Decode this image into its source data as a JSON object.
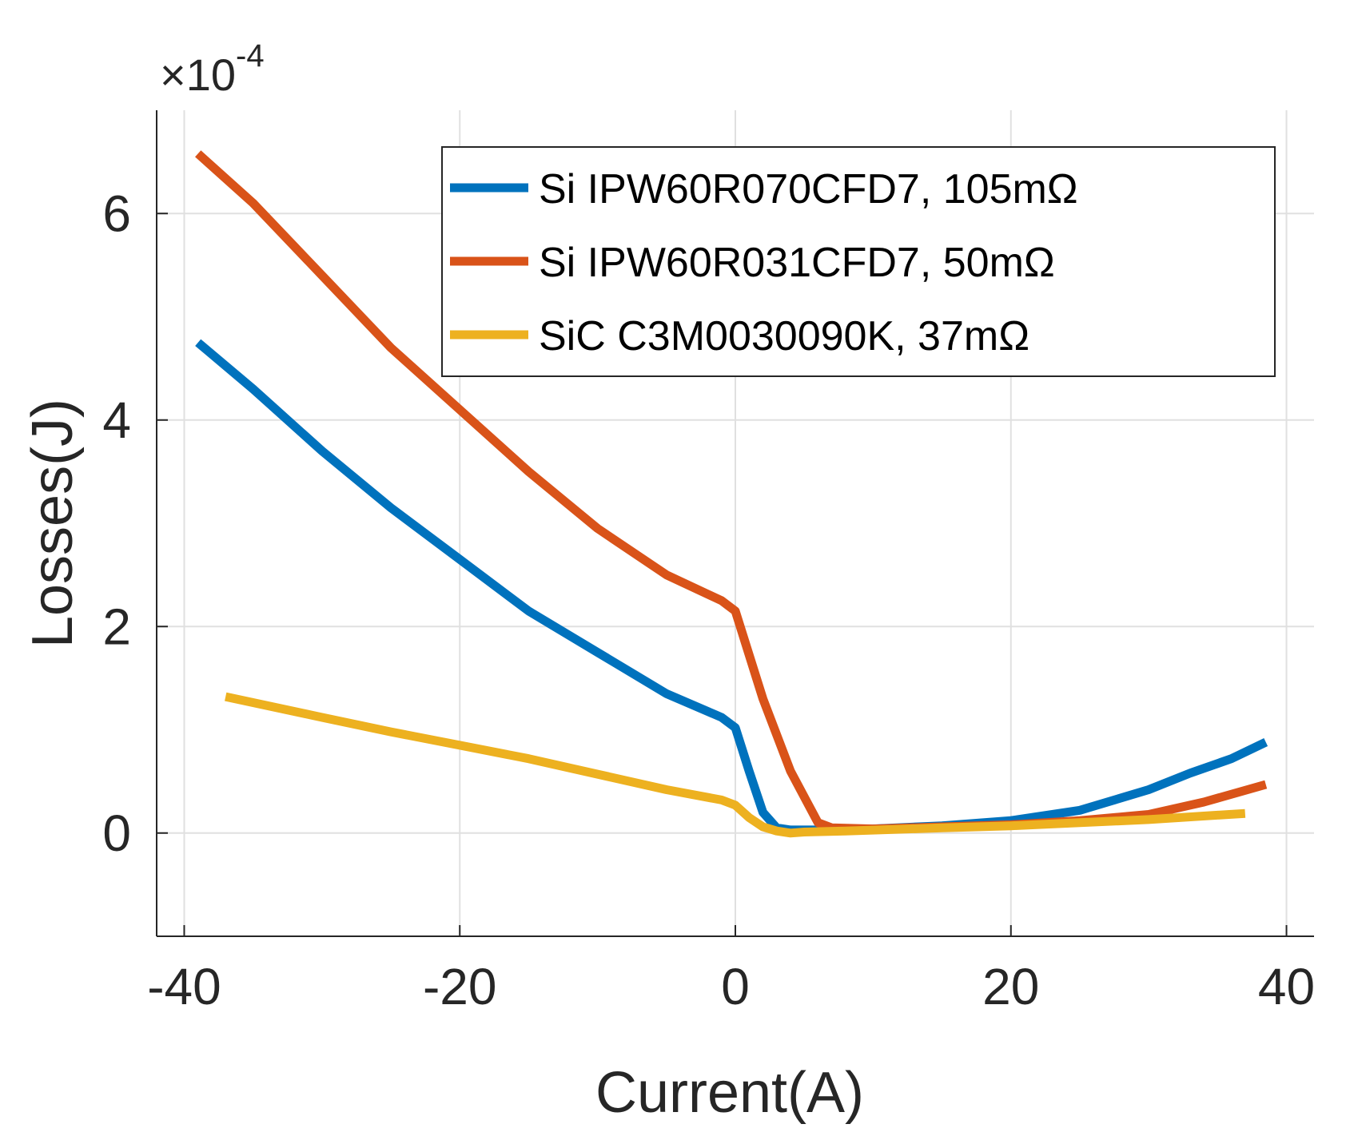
{
  "chart_data": {
    "type": "line",
    "title": "",
    "xlabel": "Current(A)",
    "ylabel": "Losses(J)",
    "xlim": [
      -42,
      42
    ],
    "ylim": [
      -1,
      7
    ],
    "xticks": [
      -40,
      -20,
      0,
      20,
      40
    ],
    "xtick_labels": [
      "-40",
      "-20",
      "0",
      "20",
      "40"
    ],
    "yticks": [
      0,
      2,
      4,
      6
    ],
    "ytick_labels": [
      "0",
      "2",
      "4",
      "6"
    ],
    "y_exponent_prefix": "×10",
    "y_exponent": "-4",
    "grid": true,
    "legend_position": "top-right",
    "series": [
      {
        "name": "Si IPW60R070CFD7, 105mΩ",
        "color": "#0072BD",
        "x": [
          -39,
          -35,
          -30,
          -25,
          -20,
          -15,
          -10,
          -5,
          -1,
          0,
          1,
          2,
          3,
          4,
          6,
          10,
          15,
          20,
          25,
          30,
          33,
          36,
          38.5
        ],
        "y": [
          4.75,
          4.3,
          3.7,
          3.15,
          2.65,
          2.15,
          1.75,
          1.35,
          1.12,
          1.02,
          0.6,
          0.2,
          0.05,
          0.03,
          0.03,
          0.04,
          0.07,
          0.12,
          0.22,
          0.42,
          0.58,
          0.72,
          0.88
        ]
      },
      {
        "name": "Si IPW60R031CFD7, 50mΩ",
        "color": "#D95319",
        "x": [
          -39,
          -35,
          -30,
          -25,
          -20,
          -15,
          -10,
          -5,
          -1,
          0,
          2,
          4,
          6,
          7,
          10,
          15,
          20,
          25,
          30,
          34,
          38.5
        ],
        "y": [
          6.58,
          6.1,
          5.4,
          4.7,
          4.1,
          3.5,
          2.95,
          2.5,
          2.25,
          2.15,
          1.3,
          0.6,
          0.1,
          0.05,
          0.04,
          0.06,
          0.08,
          0.12,
          0.18,
          0.3,
          0.47
        ]
      },
      {
        "name": "SiC C3M0030090K, 37mΩ",
        "color": "#EDB120",
        "x": [
          -37,
          -30,
          -25,
          -20,
          -15,
          -10,
          -5,
          -1,
          0,
          1,
          2,
          3,
          4,
          5,
          8,
          15,
          20,
          25,
          30,
          37
        ],
        "y": [
          1.32,
          1.12,
          0.98,
          0.85,
          0.72,
          0.57,
          0.42,
          0.32,
          0.27,
          0.15,
          0.06,
          0.02,
          0.0,
          0.01,
          0.02,
          0.05,
          0.07,
          0.1,
          0.13,
          0.19
        ]
      }
    ]
  }
}
